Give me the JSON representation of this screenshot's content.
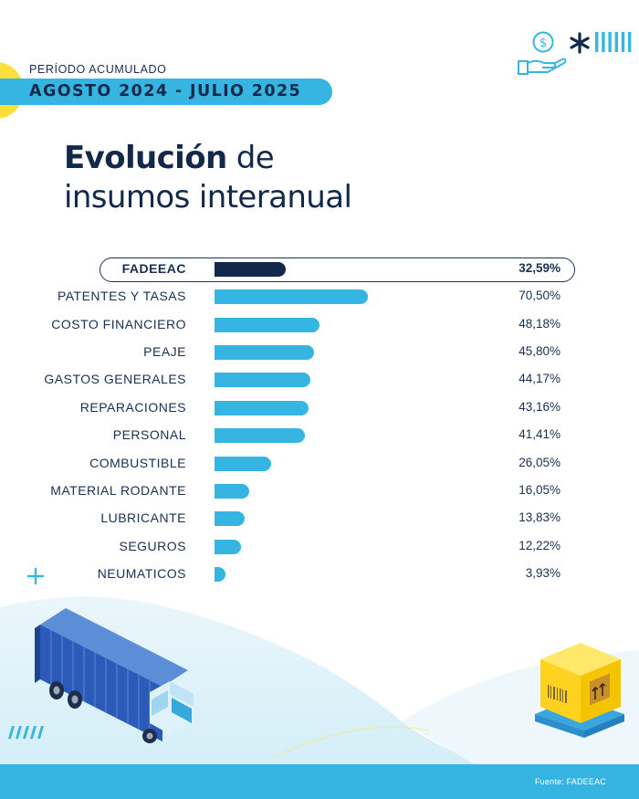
{
  "header": {
    "period_label": "PERÍODO ACUMULADO",
    "period_value": "AGOSTO 2024 - JULIO 2025",
    "title_bold": "Evolución",
    "title_rest_line1": " de",
    "title_line2": "insumos interanual"
  },
  "chart_data": {
    "type": "bar",
    "orientation": "horizontal",
    "categories": [
      "FADEEAC",
      "PATENTES Y TASAS",
      "COSTO FINANCIERO",
      "PEAJE",
      "GASTOS GENERALES",
      "REPARACIONES",
      "PERSONAL",
      "COMBUSTIBLE",
      "MATERIAL RODANTE",
      "LUBRICANTE",
      "SEGUROS",
      "NEUMATICOS"
    ],
    "values": [
      32.59,
      70.5,
      48.18,
      45.8,
      44.17,
      43.16,
      41.41,
      26.05,
      16.05,
      13.83,
      12.22,
      3.93
    ],
    "value_labels": [
      "32,59%",
      "70,50%",
      "48,18%",
      "45,80%",
      "44,17%",
      "43,16%",
      "41,41%",
      "26,05%",
      "16,05%",
      "13,83%",
      "12,22%",
      "3,93%"
    ],
    "highlight_index": 0,
    "xlim": [
      0,
      70.5
    ],
    "grid": false,
    "colors": {
      "highlight": "#13294b",
      "bar": "#37b5e2"
    }
  },
  "footer": {
    "source": "Fuente: FADEEAC"
  },
  "icons": [
    "dollar-coin-hand-icon",
    "asterisk-icon",
    "vertical-stripes-icon",
    "plus-icon",
    "diagonal-stripes-icon",
    "truck-illustration",
    "box-pallet-illustration"
  ],
  "colors": {
    "navy": "#13294b",
    "sky": "#37b5e2",
    "yellow": "#ffe03a",
    "light": "#e7f5fb"
  }
}
